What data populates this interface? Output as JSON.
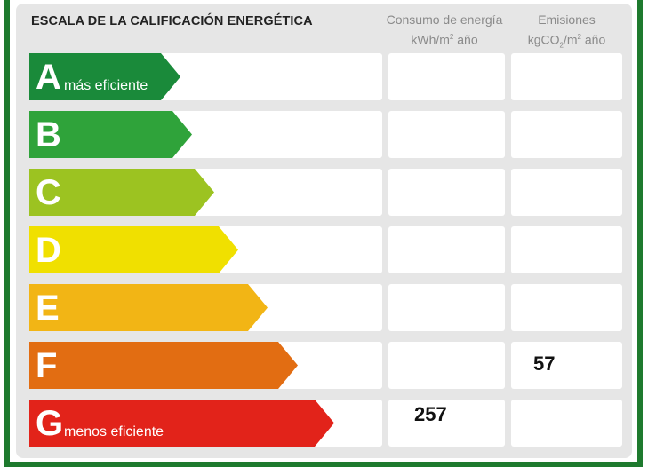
{
  "title": "ESCALA DE LA CALIFICACIÓN ENERGÉTICA",
  "columns": {
    "consumption": {
      "line1": "Consumo de energía",
      "line2_unit": "kWh/m",
      "line2_sup": "2",
      "line2_rest": " año"
    },
    "emissions": {
      "line1": "Emisiones",
      "line2_a": "kgCO",
      "line2_sub": "2",
      "line2_b": "/m",
      "line2_sup": "2",
      "line2_rest": " año"
    }
  },
  "ratings": [
    {
      "letter": "A",
      "sublabel": "más eficiente",
      "color": "#1a8a3a"
    },
    {
      "letter": "B",
      "sublabel": "",
      "color": "#2fa33a"
    },
    {
      "letter": "C",
      "sublabel": "",
      "color": "#9cc321"
    },
    {
      "letter": "D",
      "sublabel": "",
      "color": "#f0e000"
    },
    {
      "letter": "E",
      "sublabel": "",
      "color": "#f2b515"
    },
    {
      "letter": "F",
      "sublabel": "",
      "color": "#e26d12"
    },
    {
      "letter": "G",
      "sublabel": "menos eficiente",
      "color": "#e2231a"
    }
  ],
  "values": {
    "consumption": {
      "rating": "G",
      "value": "257"
    },
    "emissions": {
      "rating": "F",
      "value": "57"
    }
  }
}
